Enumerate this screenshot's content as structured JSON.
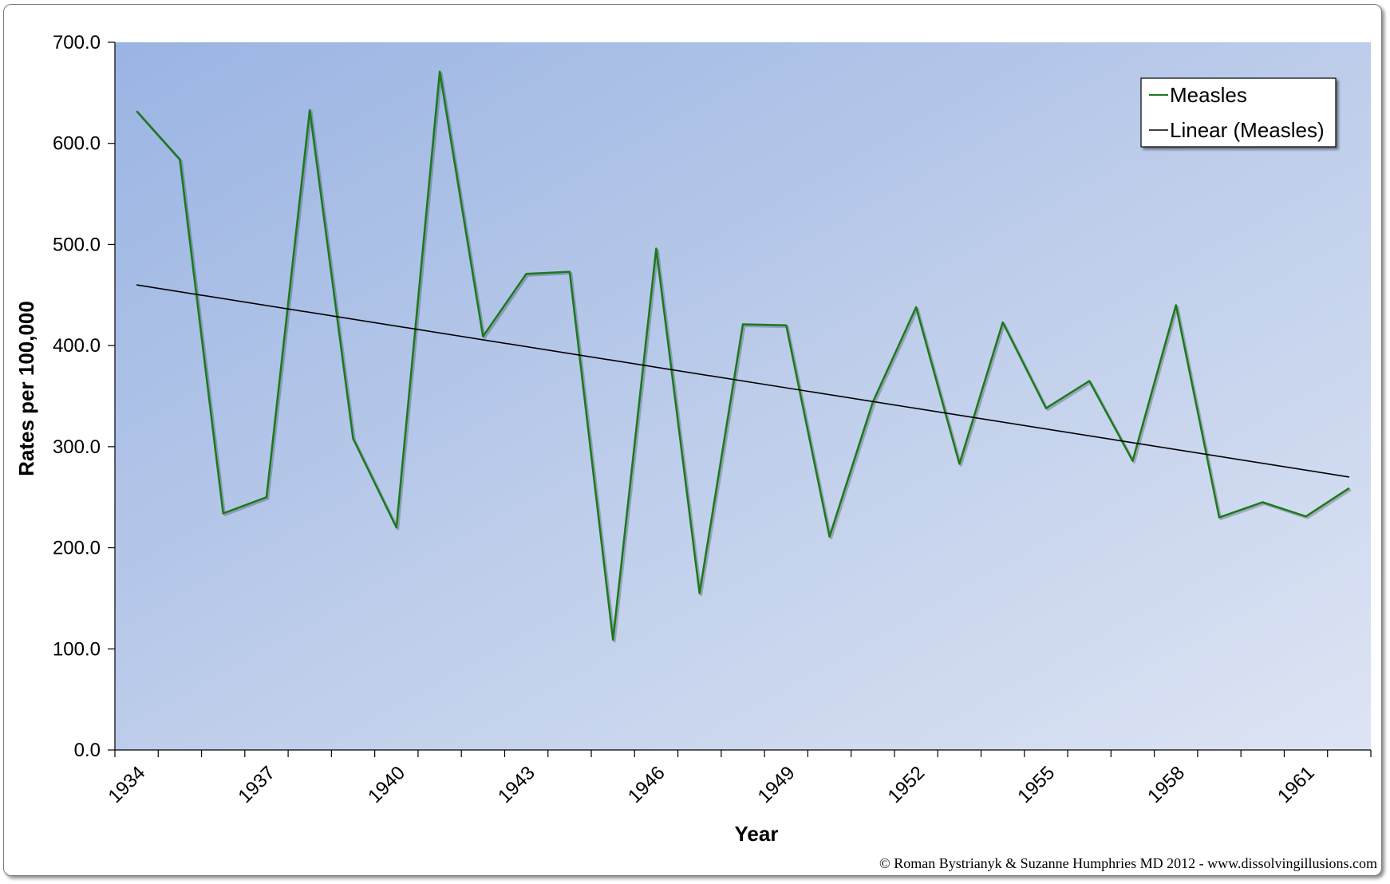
{
  "chart_data": {
    "type": "line",
    "title": "",
    "xlabel": "Year",
    "ylabel": "Rates per 100,000",
    "x": [
      1934,
      1935,
      1936,
      1937,
      1938,
      1939,
      1940,
      1941,
      1942,
      1943,
      1944,
      1945,
      1946,
      1947,
      1948,
      1949,
      1950,
      1951,
      1952,
      1953,
      1954,
      1955,
      1956,
      1957,
      1958,
      1959,
      1960,
      1961,
      1962
    ],
    "x_tick_labels": [
      "1934",
      "1937",
      "1940",
      "1943",
      "1946",
      "1949",
      "1952",
      "1955",
      "1958",
      "1961"
    ],
    "y_tick_labels": [
      "0.0",
      "100.0",
      "200.0",
      "300.0",
      "400.0",
      "500.0",
      "600.0",
      "700.0"
    ],
    "ylim": [
      0,
      700
    ],
    "series": [
      {
        "name": "Measles",
        "color": "#1a7a1a",
        "values": [
          632.0,
          584.0,
          234.0,
          250.0,
          633.0,
          308.0,
          220.0,
          671.0,
          409.0,
          471.0,
          473.0,
          109.0,
          496.0,
          155.0,
          421.0,
          420.0,
          211.0,
          344.0,
          438.0,
          283.0,
          423.0,
          338.0,
          365.0,
          286.0,
          440.0,
          230.0,
          245.0,
          231.0,
          259.0
        ]
      },
      {
        "name": "Linear (Measles)",
        "color": "#000000",
        "type": "trendline",
        "x": [
          1934,
          1962
        ],
        "values": [
          460.0,
          270.0
        ]
      }
    ],
    "legend_position": "top-right",
    "grid": false,
    "background": "gradient blue"
  },
  "copyright": "© Roman Bystrianyk & Suzanne Humphries MD 2012 - www.dissolvingillusions.com"
}
